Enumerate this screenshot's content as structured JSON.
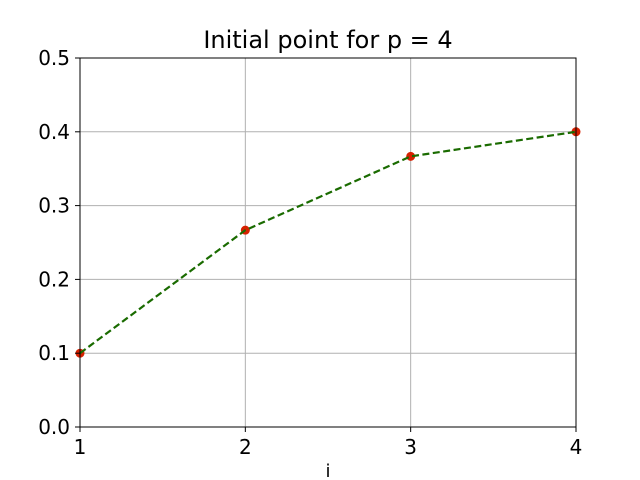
{
  "chart_data": {
    "type": "line",
    "title": "Initial point for p = 4",
    "xlabel": "i",
    "ylabel": "",
    "xlim": [
      1,
      4
    ],
    "ylim": [
      0.0,
      0.5
    ],
    "grid": true,
    "x_ticks": [
      1,
      2,
      3,
      4
    ],
    "x_tick_labels": [
      "1",
      "2",
      "3",
      "4"
    ],
    "y_ticks": [
      0.0,
      0.1,
      0.2,
      0.3,
      0.4,
      0.5
    ],
    "y_tick_labels": [
      "0.0",
      "0.1",
      "0.2",
      "0.3",
      "0.4",
      "0.5"
    ],
    "line_color": "#1a6b00",
    "marker_color": "#d62000",
    "line_style": "dashed",
    "series": [
      {
        "x": [
          1,
          2,
          3,
          4
        ],
        "values": [
          0.1,
          0.2667,
          0.3667,
          0.4
        ]
      }
    ]
  }
}
